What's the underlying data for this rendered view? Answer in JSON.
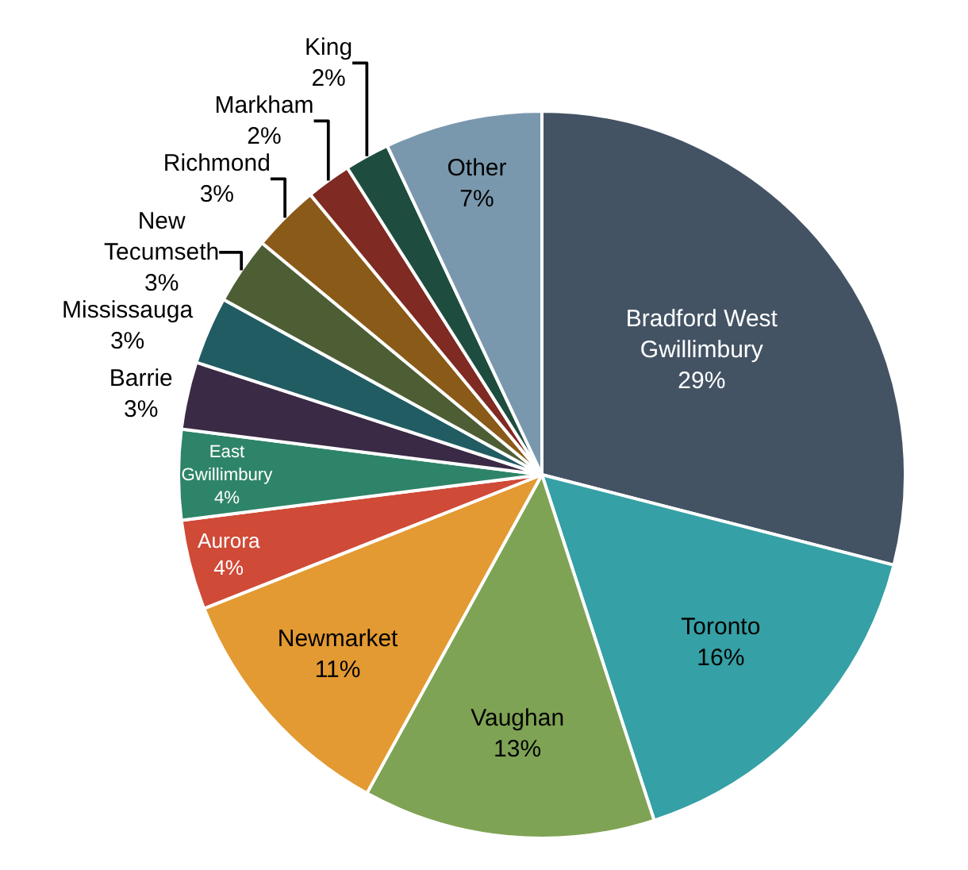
{
  "chart_data": {
    "type": "pie",
    "categories": [
      "Bradford West Gwillimbury",
      "Toronto",
      "Vaughan",
      "Newmarket",
      "Aurora",
      "East Gwillimbury",
      "Barrie",
      "Mississauga",
      "New Tecumseth",
      "Richmond",
      "Markham",
      "King",
      "Other"
    ],
    "values": [
      29,
      16,
      13,
      11,
      4,
      4,
      3,
      3,
      3,
      3,
      2,
      2,
      7
    ],
    "value_labels": [
      "29%",
      "16%",
      "13%",
      "11%",
      "4%",
      "4%",
      "3%",
      "3%",
      "3%",
      "3%",
      "2%",
      "2%",
      "7%"
    ],
    "colors": [
      "#435364",
      "#35a0a5",
      "#7fa354",
      "#e39a32",
      "#cf4a37",
      "#2e8468",
      "#3a2a45",
      "#215c63",
      "#4d5e34",
      "#8a5a18",
      "#7f2a22",
      "#1e4d3f",
      "#7a98ad"
    ],
    "legend": false
  }
}
